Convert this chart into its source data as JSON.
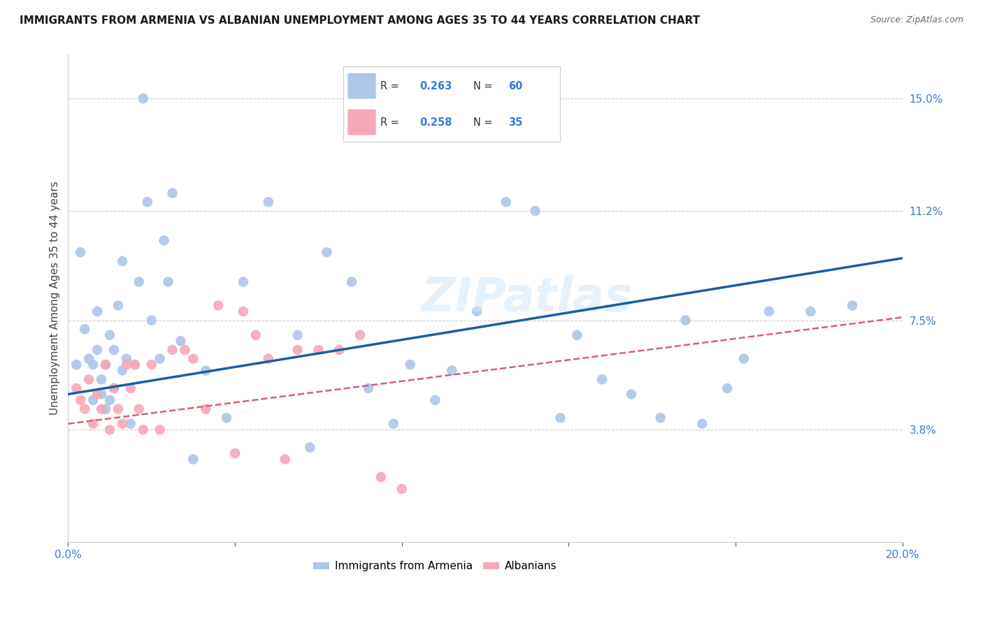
{
  "title": "IMMIGRANTS FROM ARMENIA VS ALBANIAN UNEMPLOYMENT AMONG AGES 35 TO 44 YEARS CORRELATION CHART",
  "source": "Source: ZipAtlas.com",
  "ylabel": "Unemployment Among Ages 35 to 44 years",
  "xlim": [
    0.0,
    0.2
  ],
  "ylim": [
    0.0,
    0.165
  ],
  "xticks": [
    0.0,
    0.04,
    0.08,
    0.12,
    0.16,
    0.2
  ],
  "xticklabels": [
    "0.0%",
    "",
    "",
    "",
    "",
    "20.0%"
  ],
  "ytick_labels_right": [
    "15.0%",
    "11.2%",
    "7.5%",
    "3.8%"
  ],
  "ytick_vals_right": [
    0.15,
    0.112,
    0.075,
    0.038
  ],
  "armenia_color": "#aec6e8",
  "albanian_color": "#f4a9b8",
  "armenia_line_color": "#1a5ca8",
  "albanian_line_color": "#e05a7a",
  "watermark": "ZIPatlas",
  "background_color": "#ffffff",
  "armenia_x": [
    0.002,
    0.003,
    0.004,
    0.005,
    0.006,
    0.006,
    0.007,
    0.007,
    0.008,
    0.008,
    0.009,
    0.009,
    0.01,
    0.01,
    0.011,
    0.011,
    0.012,
    0.013,
    0.013,
    0.014,
    0.015,
    0.016,
    0.017,
    0.018,
    0.019,
    0.02,
    0.022,
    0.023,
    0.024,
    0.025,
    0.027,
    0.03,
    0.033,
    0.038,
    0.042,
    0.048,
    0.055,
    0.058,
    0.062,
    0.068,
    0.072,
    0.078,
    0.082,
    0.088,
    0.092,
    0.098,
    0.105,
    0.112,
    0.118,
    0.122,
    0.128,
    0.135,
    0.142,
    0.148,
    0.152,
    0.158,
    0.162,
    0.168,
    0.178,
    0.188
  ],
  "armenia_y": [
    0.06,
    0.098,
    0.072,
    0.062,
    0.048,
    0.06,
    0.078,
    0.065,
    0.05,
    0.055,
    0.06,
    0.045,
    0.07,
    0.048,
    0.065,
    0.052,
    0.08,
    0.095,
    0.058,
    0.062,
    0.04,
    0.06,
    0.088,
    0.15,
    0.115,
    0.075,
    0.062,
    0.102,
    0.088,
    0.118,
    0.068,
    0.028,
    0.058,
    0.042,
    0.088,
    0.115,
    0.07,
    0.032,
    0.098,
    0.088,
    0.052,
    0.04,
    0.06,
    0.048,
    0.058,
    0.078,
    0.115,
    0.112,
    0.042,
    0.07,
    0.055,
    0.05,
    0.042,
    0.075,
    0.04,
    0.052,
    0.062,
    0.078,
    0.078,
    0.08
  ],
  "albanian_x": [
    0.002,
    0.003,
    0.004,
    0.005,
    0.006,
    0.007,
    0.008,
    0.009,
    0.01,
    0.011,
    0.012,
    0.013,
    0.014,
    0.015,
    0.016,
    0.017,
    0.018,
    0.02,
    0.022,
    0.025,
    0.028,
    0.03,
    0.033,
    0.036,
    0.04,
    0.042,
    0.045,
    0.048,
    0.052,
    0.055,
    0.06,
    0.065,
    0.07,
    0.075,
    0.08
  ],
  "albanian_y": [
    0.052,
    0.048,
    0.045,
    0.055,
    0.04,
    0.05,
    0.045,
    0.06,
    0.038,
    0.052,
    0.045,
    0.04,
    0.06,
    0.052,
    0.06,
    0.045,
    0.038,
    0.06,
    0.038,
    0.065,
    0.065,
    0.062,
    0.045,
    0.08,
    0.03,
    0.078,
    0.07,
    0.062,
    0.028,
    0.065,
    0.065,
    0.065,
    0.07,
    0.022,
    0.018
  ],
  "arm_line_x": [
    0.0,
    0.2
  ],
  "arm_line_y": [
    0.05,
    0.095
  ],
  "alb_line_x": [
    0.0,
    0.2
  ],
  "alb_line_y": [
    0.04,
    0.082
  ]
}
